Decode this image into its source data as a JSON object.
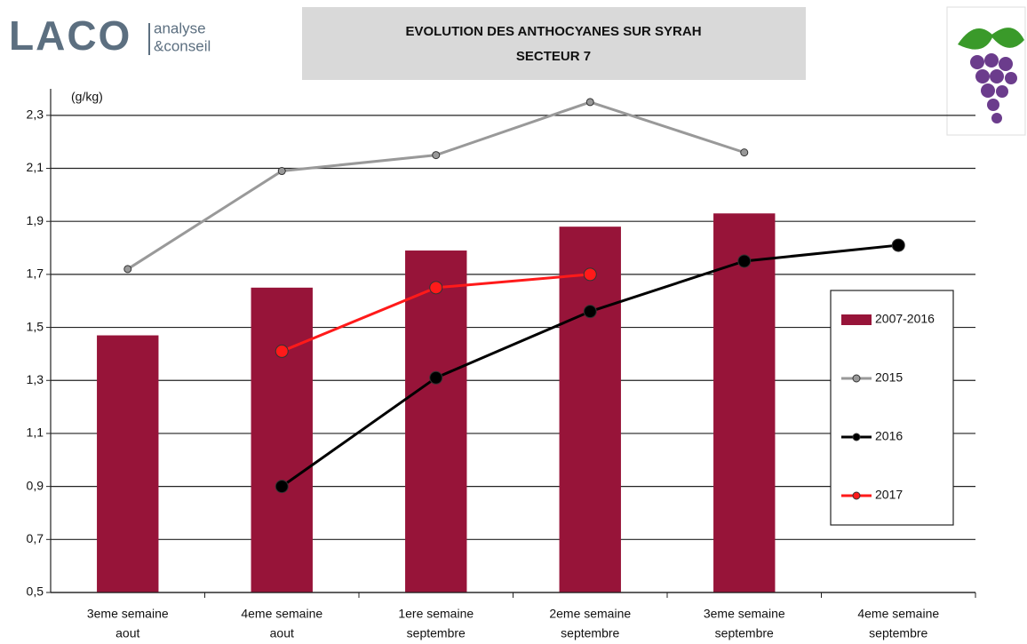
{
  "header": {
    "logo": "LACO",
    "tagline": [
      "analyse",
      "&conseil"
    ]
  },
  "chart_data": {
    "type": "bar",
    "title": "EVOLUTION DES ANTHOCYANES SUR SYRAH",
    "subtitle": "SECTEUR 7",
    "y_label": "(g/kg)",
    "categories": [
      [
        "3eme semaine",
        "aout"
      ],
      [
        "4eme semaine",
        "aout"
      ],
      [
        "1ere semaine",
        "septembre"
      ],
      [
        "2eme semaine",
        "septembre"
      ],
      [
        "3eme semaine",
        "septembre"
      ],
      [
        "4eme semaine",
        "septembre"
      ]
    ],
    "series": [
      {
        "name": "2007-2016",
        "type": "bar",
        "color": "#971439",
        "values": [
          1.47,
          1.65,
          1.79,
          1.88,
          1.93,
          null
        ]
      },
      {
        "name": "2015",
        "type": "line",
        "color": "#999999",
        "marker": 4,
        "values": [
          1.72,
          2.09,
          2.15,
          2.35,
          2.16,
          null
        ]
      },
      {
        "name": "2016",
        "type": "line",
        "color": "#000000",
        "marker": 7,
        "values": [
          null,
          0.9,
          1.31,
          1.56,
          1.75,
          1.81
        ]
      },
      {
        "name": "2017",
        "type": "line",
        "color": "#ff1a1a",
        "marker": 7,
        "values": [
          null,
          1.41,
          1.65,
          1.7,
          null,
          null
        ]
      }
    ],
    "ylim": [
      0.5,
      2.4
    ],
    "yticks": [
      {
        "value": 0.5,
        "label": "0,5"
      },
      {
        "value": 0.7,
        "label": "0,7"
      },
      {
        "value": 0.9,
        "label": "0,9"
      },
      {
        "value": 1.1,
        "label": "1,1"
      },
      {
        "value": 1.3,
        "label": "1,3"
      },
      {
        "value": 1.5,
        "label": "1,5"
      },
      {
        "value": 1.7,
        "label": "1,7"
      },
      {
        "value": 1.9,
        "label": "1,9"
      },
      {
        "value": 2.1,
        "label": "2,1"
      },
      {
        "value": 2.3,
        "label": "2,3"
      }
    ],
    "grid": true,
    "legend": "right"
  }
}
